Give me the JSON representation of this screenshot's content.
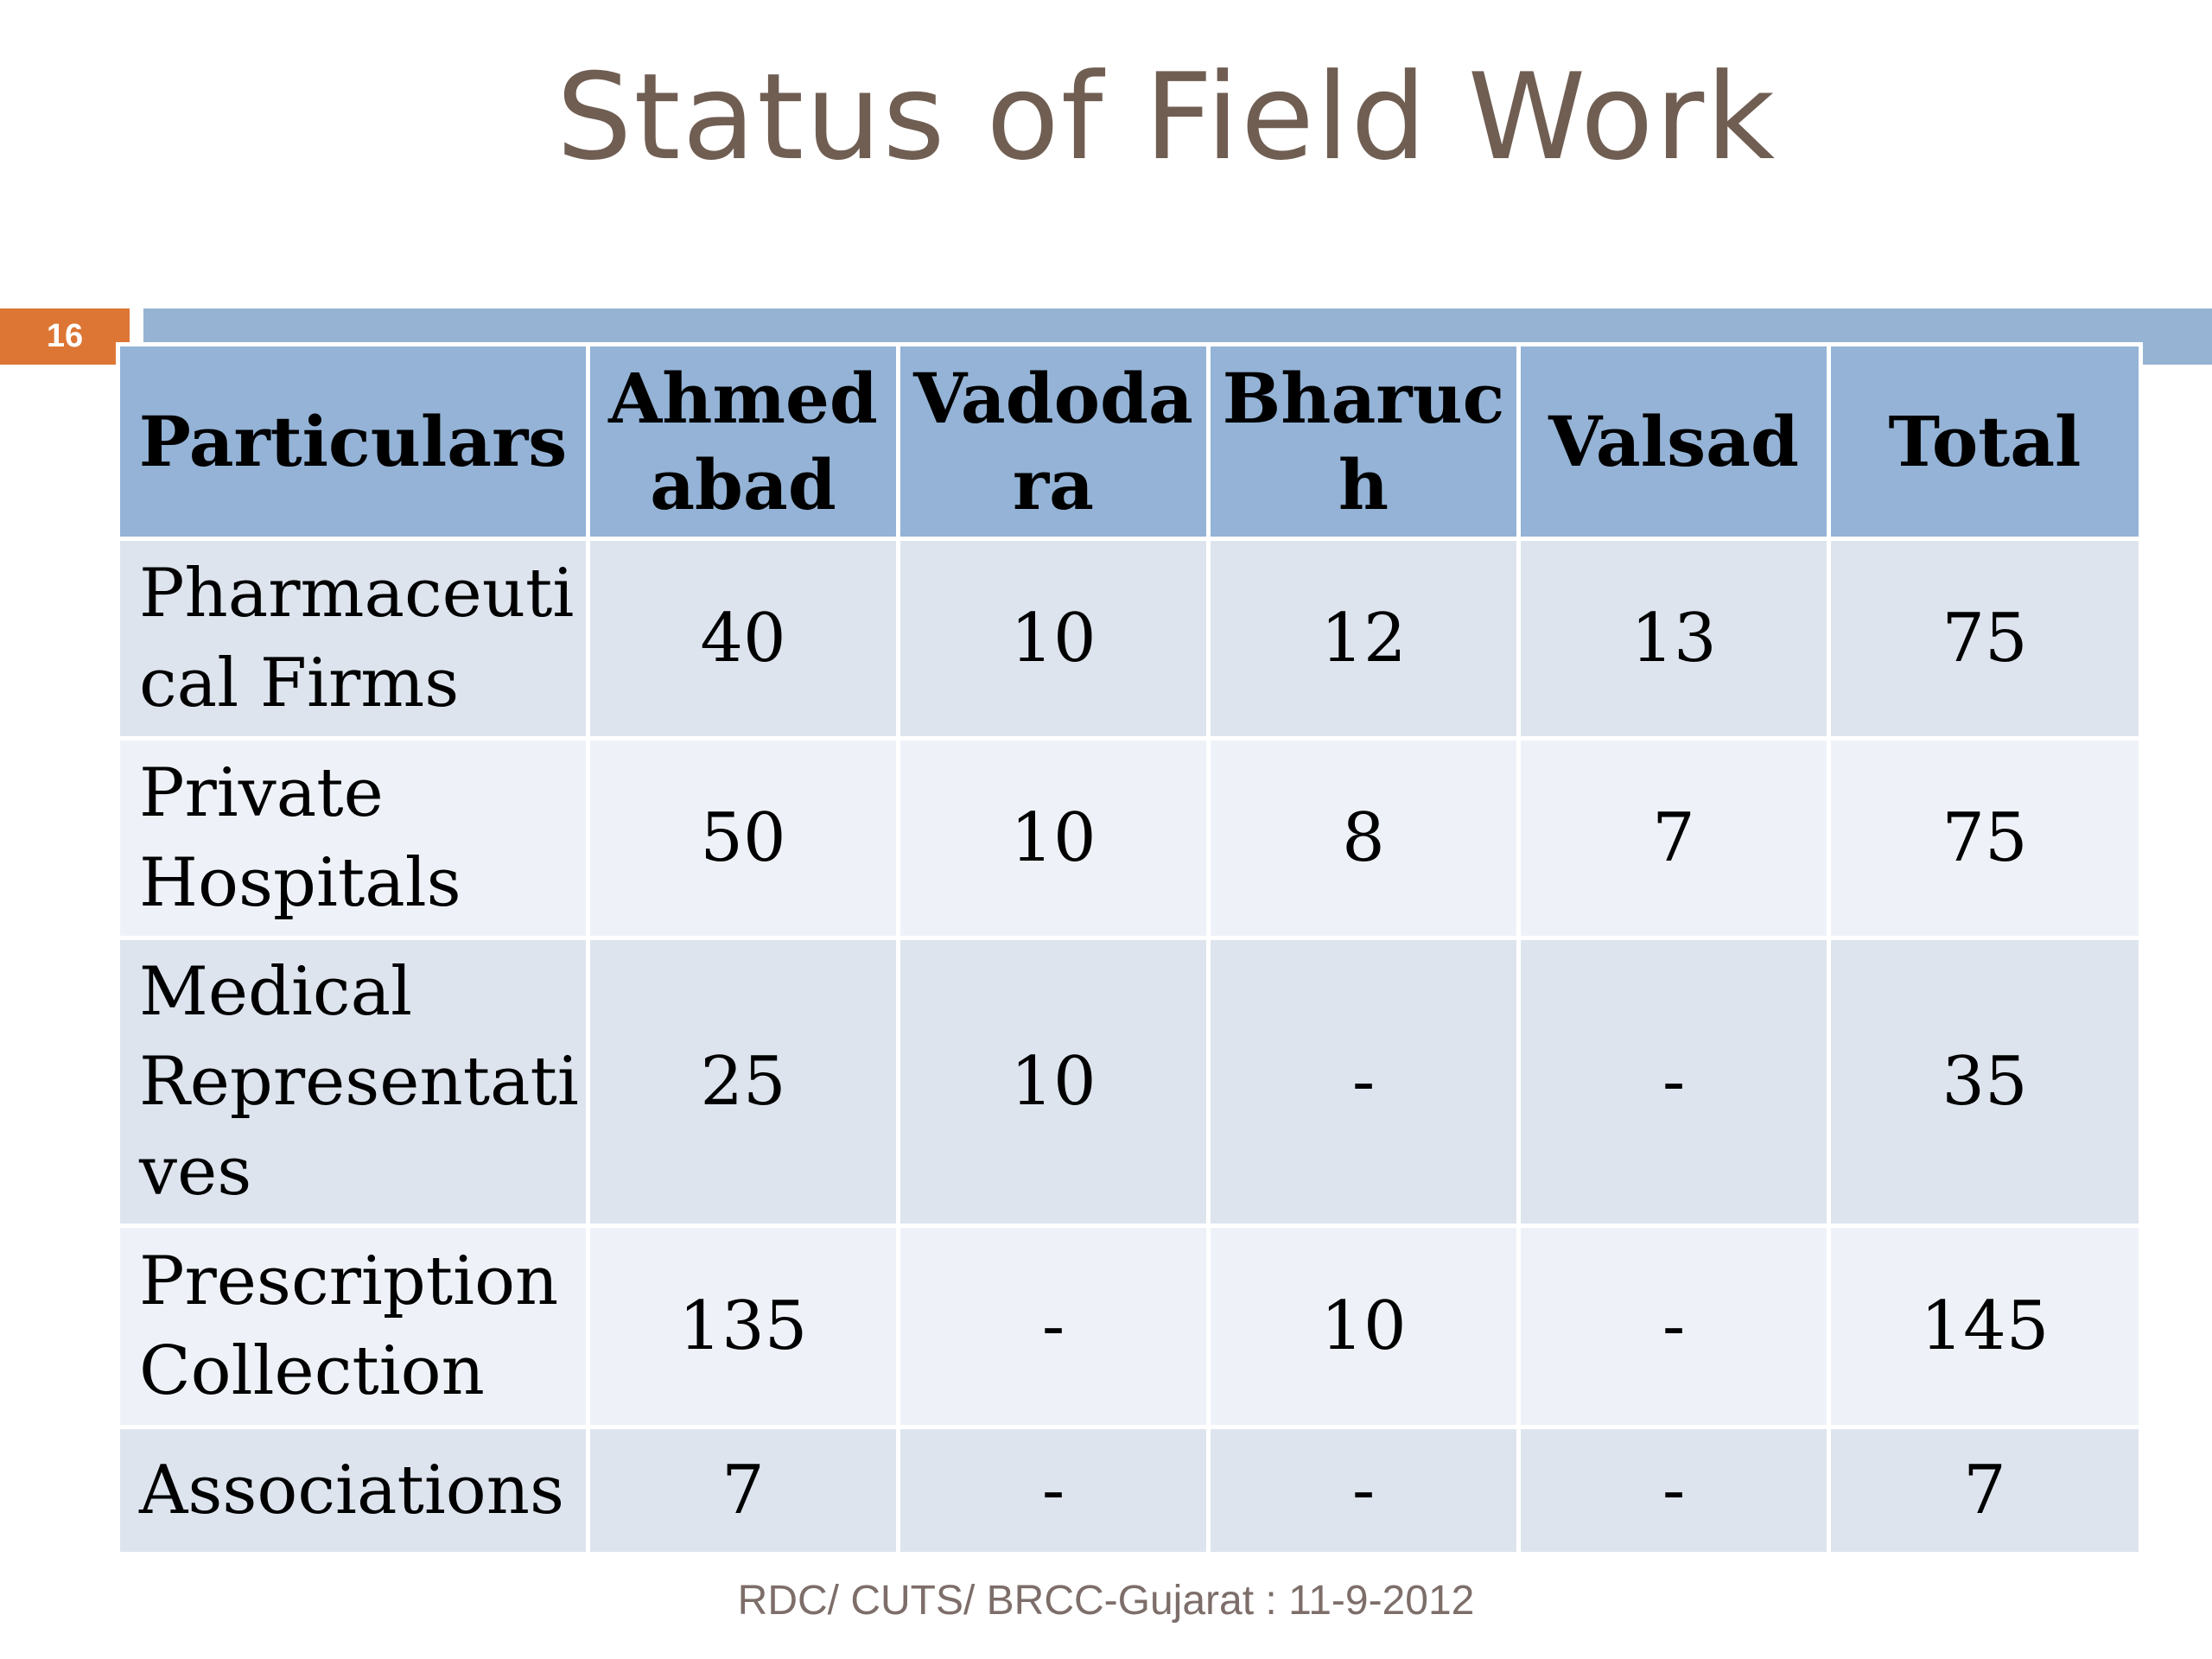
{
  "title": "Status of Field Work",
  "slide_number": "16",
  "table": {
    "headers": [
      [
        "Particulars"
      ],
      [
        "Ahmed",
        "abad"
      ],
      [
        "Vadoda",
        "ra"
      ],
      [
        "Bharuc",
        "h"
      ],
      [
        "Valsad"
      ],
      [
        "Total"
      ]
    ],
    "rows": [
      {
        "label": [
          "Pharmaceuti",
          "cal Firms"
        ],
        "values": [
          "40",
          "10",
          "12",
          "13",
          "75"
        ]
      },
      {
        "label": [
          "Private",
          "Hospitals"
        ],
        "values": [
          "50",
          "10",
          "8",
          "7",
          "75"
        ]
      },
      {
        "label": [
          "Medical",
          "Representati",
          "ves"
        ],
        "values": [
          "25",
          "10",
          "-",
          "-",
          "35"
        ]
      },
      {
        "label": [
          "Prescription",
          "Collection"
        ],
        "values": [
          "135",
          "-",
          "10",
          "-",
          "145"
        ]
      },
      {
        "label": [
          "Associations"
        ],
        "values": [
          "7",
          "-",
          "-",
          "-",
          "7"
        ]
      }
    ]
  },
  "footer": "RDC/ CUTS/ BRCC-Gujarat : 11-9-2012",
  "colors": {
    "title": "#705e53",
    "accent_orange": "#dd7635",
    "header_blue": "#94b3d6",
    "row_dark": "#dde4ee",
    "row_light": "#eef2f8"
  }
}
